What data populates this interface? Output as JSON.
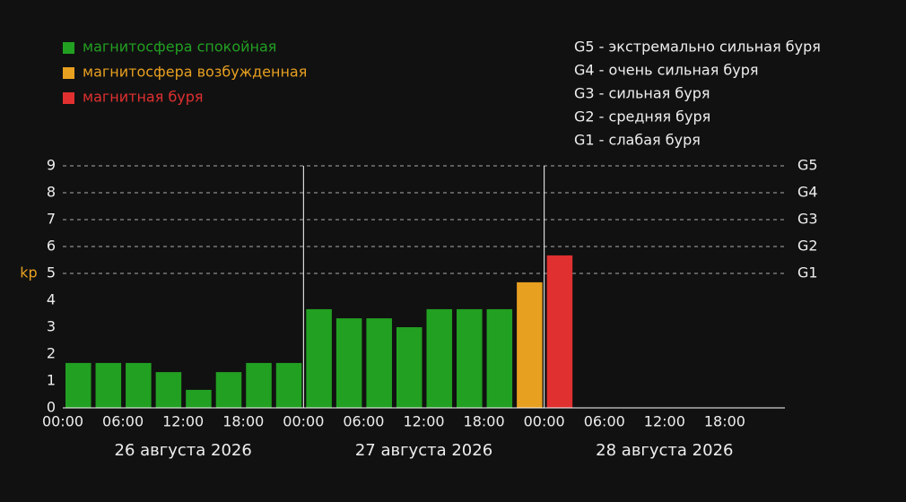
{
  "chart_data": {
    "type": "bar",
    "legend": [
      {
        "name": "магнитосфера спокойная",
        "color": "#22a022"
      },
      {
        "name": "магнитосфера возбужденная",
        "color": "#e8a020"
      },
      {
        "name": "магнитная буря",
        "color": "#e03030"
      }
    ],
    "scale_legend": [
      "G5 - экстремально сильная буря",
      "G4 - очень сильная буря",
      "G3 - сильная буря",
      "G2 - средняя буря",
      "G1 - слабая буря"
    ],
    "ylabel": "kp",
    "ylim": [
      0,
      9
    ],
    "yticks": [
      0,
      1,
      2,
      3,
      4,
      5,
      6,
      7,
      8,
      9
    ],
    "g_levels": [
      {
        "value": 9,
        "label": "G5"
      },
      {
        "value": 8,
        "label": "G4"
      },
      {
        "value": 7,
        "label": "G3"
      },
      {
        "value": 6,
        "label": "G2"
      },
      {
        "value": 5,
        "label": "G1"
      }
    ],
    "x_tick_labels": [
      "00:00",
      "06:00",
      "12:00",
      "18:00",
      "00:00",
      "06:00",
      "12:00",
      "18:00",
      "00:00",
      "06:00",
      "12:00",
      "18:00"
    ],
    "days": [
      "26 августа 2026",
      "27 августа 2026",
      "28 августа 2026"
    ],
    "values": [
      1.67,
      1.67,
      1.67,
      1.33,
      0.67,
      1.33,
      1.67,
      1.67,
      3.67,
      3.33,
      3.33,
      3.0,
      3.67,
      3.67,
      3.67,
      4.67,
      5.67,
      null,
      null,
      null,
      null,
      null,
      null,
      null
    ],
    "colors": [
      "#22a022",
      "#22a022",
      "#22a022",
      "#22a022",
      "#22a022",
      "#22a022",
      "#22a022",
      "#22a022",
      "#22a022",
      "#22a022",
      "#22a022",
      "#22a022",
      "#22a022",
      "#22a022",
      "#22a022",
      "#e8a020",
      "#e03030",
      null,
      null,
      null,
      null,
      null,
      null,
      null
    ]
  }
}
